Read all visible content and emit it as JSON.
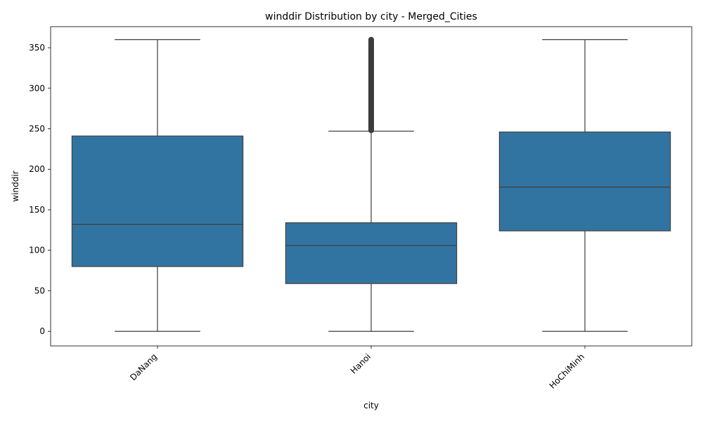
{
  "chart_data": {
    "type": "box",
    "title": "winddir Distribution by city - Merged_Cities",
    "xlabel": "city",
    "ylabel": "winddir",
    "ylim": [
      -18,
      376
    ],
    "yticks": [
      0,
      50,
      100,
      150,
      200,
      250,
      300,
      350
    ],
    "grid": false,
    "legend": "none",
    "box_color": "#3274a1",
    "line_color": "#3d3d3d",
    "categories": [
      "DaNang",
      "Hanoi",
      "HoChiMinh"
    ],
    "boxes": [
      {
        "category": "DaNang",
        "whisker_low": 0,
        "q1": 80,
        "median": 132,
        "q3": 241,
        "whisker_high": 360,
        "outliers_from": null,
        "outliers_to": null
      },
      {
        "category": "Hanoi",
        "whisker_low": 0,
        "q1": 59,
        "median": 106,
        "q3": 134,
        "whisker_high": 247,
        "outliers_from": 248,
        "outliers_to": 360
      },
      {
        "category": "HoChiMinh",
        "whisker_low": 0,
        "q1": 124,
        "median": 178,
        "q3": 246,
        "whisker_high": 360,
        "outliers_from": null,
        "outliers_to": null
      }
    ]
  }
}
